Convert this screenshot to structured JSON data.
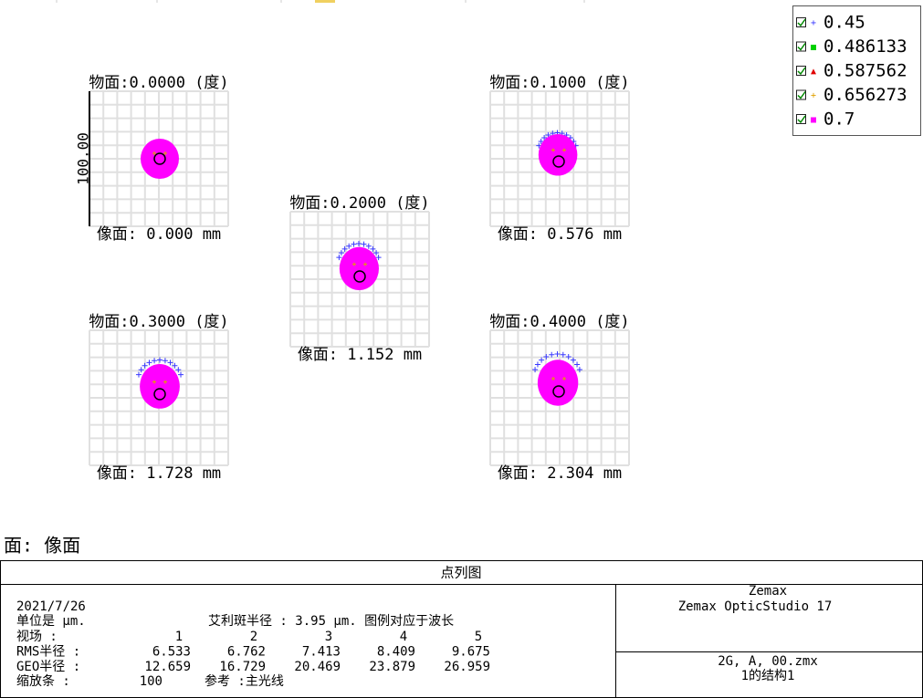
{
  "legend": [
    {
      "label": "0.45",
      "marker": "+",
      "color": "#3a3aff"
    },
    {
      "label": "0.486133",
      "marker": "■",
      "color": "#00d000"
    },
    {
      "label": "0.587562",
      "marker": "▲",
      "color": "#e00000"
    },
    {
      "label": "0.656273",
      "marker": "+",
      "color": "#e0a000"
    },
    {
      "label": "0.7",
      "marker": "■",
      "color": "#ff00ff"
    }
  ],
  "fields": [
    {
      "title": "物面:0.0000 (度)",
      "image": "像面: 0.000 mm"
    },
    {
      "title": "物面:0.1000 (度)",
      "image": "像面: 0.576 mm"
    },
    {
      "title": "物面:0.2000 (度)",
      "image": "像面: 1.152 mm"
    },
    {
      "title": "物面:0.3000 (度)",
      "image": "像面: 1.728 mm"
    },
    {
      "title": "物面:0.4000 (度)",
      "image": "像面: 2.304 mm"
    }
  ],
  "scale_label": "100.00",
  "surface_label": "面: 像面",
  "footer": {
    "title": "点列图",
    "date": "2021/7/26",
    "units": "单位是 µm.",
    "airy": "艾利斑半径 : 3.95 µm. 图例对应于波长",
    "rows": [
      {
        "label": "视场      :",
        "values": [
          1,
          2,
          3,
          4,
          5
        ]
      },
      {
        "label": "RMS半径 :",
        "values": [
          6.533,
          6.762,
          7.413,
          8.409,
          9.675
        ]
      },
      {
        "label": "GEO半径 :",
        "values": [
          12.659,
          16.729,
          20.469,
          23.879,
          26.959
        ]
      }
    ],
    "scale": {
      "label": "缩放条  :",
      "value": 100,
      "reference": "参考  :主光线"
    },
    "company": "Zemax",
    "product": "Zemax OpticStudio 17",
    "file": "2G, A, 00.zmx",
    "config": "1的结构1"
  }
}
